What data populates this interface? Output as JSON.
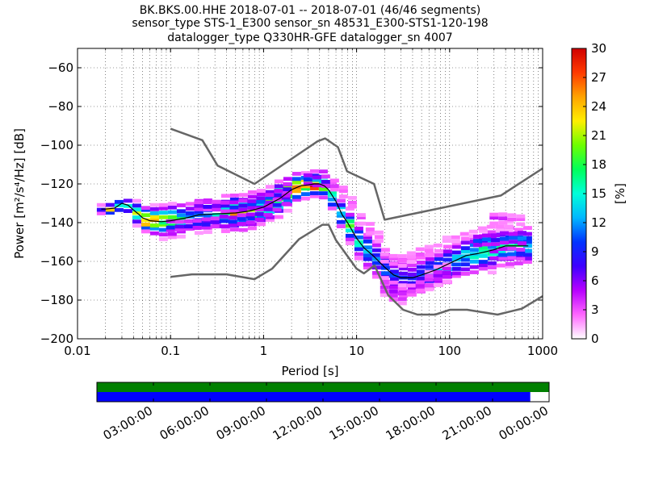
{
  "title": {
    "line1": "BK.BKS.00.HHE   2018-07-01 -- 2018-07-01  (46/46 segments)",
    "line2": "sensor_type STS-1_E300 sensor_sn 48531_E300-STS1-120-198",
    "line3": "datalogger_type Q330HR-GFE datalogger_sn 4007"
  },
  "chart_data": [
    {
      "type": "heatmap",
      "name": "ppsd",
      "xlabel": "Period [s]",
      "ylabel": "Power [m²/s⁴/Hz] [dB]",
      "x_scale": "log",
      "xlim": [
        0.01,
        1000
      ],
      "ylim": [
        -200,
        -50
      ],
      "x_ticks": [
        0.01,
        0.1,
        1,
        10,
        100,
        1000
      ],
      "x_tick_labels": [
        "0.01",
        "0.1",
        "1",
        "10",
        "100",
        "1000"
      ],
      "y_ticks": [
        -200,
        -180,
        -160,
        -140,
        -120,
        -100,
        -80,
        -60
      ],
      "y_tick_labels": [
        "−200",
        "−180",
        "−160",
        "−140",
        "−120",
        "−100",
        "−80",
        "−60"
      ],
      "grid": "dotted",
      "colorbar": {
        "label": "[%]",
        "min": 0,
        "max": 30,
        "ticks": [
          0,
          3,
          6,
          9,
          12,
          15,
          18,
          21,
          24,
          27,
          30
        ],
        "colormap": [
          "#ffffff",
          "#ff66ff",
          "#b700ff",
          "#3d00ff",
          "#0033ff",
          "#00b7ff",
          "#00ffd9",
          "#00ff5b",
          "#6dff00",
          "#ffee00",
          "#ffa300",
          "#ff3a00",
          "#d00000"
        ]
      },
      "noise_models": [
        {
          "name": "NHNM",
          "color": "#666666",
          "points": [
            [
              0.1,
              -91.5
            ],
            [
              0.22,
              -97.4
            ],
            [
              0.32,
              -110.5
            ],
            [
              0.8,
              -120
            ],
            [
              3.8,
              -98
            ],
            [
              4.6,
              -96.5
            ],
            [
              6.3,
              -101
            ],
            [
              7.9,
              -113.5
            ],
            [
              15.4,
              -120
            ],
            [
              20,
              -138.5
            ],
            [
              354.8,
              -126
            ],
            [
              1000,
              -112
            ]
          ]
        },
        {
          "name": "NLNM",
          "color": "#666666",
          "points": [
            [
              0.1,
              -168
            ],
            [
              0.17,
              -166.7
            ],
            [
              0.4,
              -166.7
            ],
            [
              0.8,
              -169.2
            ],
            [
              1.24,
              -163.7
            ],
            [
              2.4,
              -148.6
            ],
            [
              4.3,
              -141.1
            ],
            [
              5,
              -141.1
            ],
            [
              6,
              -149
            ],
            [
              10,
              -163.8
            ],
            [
              12,
              -166.2
            ],
            [
              15.6,
              -162.1
            ],
            [
              21.9,
              -177.5
            ],
            [
              31.6,
              -185
            ],
            [
              45,
              -187.5
            ],
            [
              70,
              -187.5
            ],
            [
              101,
              -185
            ],
            [
              154,
              -185
            ],
            [
              328,
              -187.5
            ],
            [
              600,
              -184.4
            ],
            [
              1000,
              -178
            ]
          ]
        }
      ],
      "median_curve": [
        [
          0.018,
          -133
        ],
        [
          0.02,
          -133
        ],
        [
          0.025,
          -132.5
        ],
        [
          0.03,
          -130
        ],
        [
          0.035,
          -131
        ],
        [
          0.04,
          -133.5
        ],
        [
          0.045,
          -135.5
        ],
        [
          0.05,
          -137.5
        ],
        [
          0.06,
          -139
        ],
        [
          0.08,
          -139.5
        ],
        [
          0.1,
          -139
        ],
        [
          0.15,
          -137.5
        ],
        [
          0.2,
          -136
        ],
        [
          0.3,
          -135.5
        ],
        [
          0.5,
          -135
        ],
        [
          0.7,
          -134
        ],
        [
          1,
          -132
        ],
        [
          1.5,
          -127.5
        ],
        [
          2,
          -123
        ],
        [
          2.5,
          -121
        ],
        [
          3,
          -120.5
        ],
        [
          3.5,
          -120
        ],
        [
          4,
          -120
        ],
        [
          4.5,
          -121
        ],
        [
          5,
          -123
        ],
        [
          6,
          -129
        ],
        [
          7,
          -136
        ],
        [
          8,
          -140
        ],
        [
          10,
          -148
        ],
        [
          12,
          -153
        ],
        [
          15,
          -157
        ],
        [
          20,
          -163
        ],
        [
          25,
          -167
        ],
        [
          30,
          -168.5
        ],
        [
          40,
          -168.5
        ],
        [
          50,
          -167
        ],
        [
          70,
          -164.5
        ],
        [
          100,
          -161
        ],
        [
          150,
          -157
        ],
        [
          200,
          -156
        ],
        [
          300,
          -154
        ],
        [
          400,
          -152
        ],
        [
          500,
          -152
        ],
        [
          700,
          -152
        ]
      ],
      "density_bands": [
        [
          [
            0.018,
            -133.5,
            1.5,
            7
          ],
          [
            0.02,
            -133.5,
            1.5,
            14
          ],
          [
            0.025,
            -133,
            1.8,
            26
          ],
          [
            0.03,
            -130,
            2,
            10
          ],
          [
            0.035,
            -131.5,
            2,
            14
          ],
          [
            0.04,
            -134,
            2.5,
            28
          ],
          [
            0.045,
            -136,
            3,
            20
          ],
          [
            0.05,
            -138,
            3,
            24
          ],
          [
            0.06,
            -139,
            3.5,
            28
          ],
          [
            0.08,
            -139.5,
            4,
            20
          ],
          [
            0.1,
            -139,
            4,
            22
          ],
          [
            0.15,
            -137.5,
            4,
            12
          ],
          [
            0.2,
            -136,
            4.5,
            10
          ],
          [
            0.3,
            -135.5,
            4,
            16
          ],
          [
            0.5,
            -135,
            4.5,
            22
          ],
          [
            0.7,
            -134,
            4.5,
            18
          ],
          [
            1,
            -132,
            4,
            20
          ],
          [
            1.5,
            -127.5,
            4,
            24
          ],
          [
            2,
            -123,
            3.5,
            28
          ],
          [
            2.5,
            -121,
            3,
            30
          ],
          [
            3,
            -120.5,
            3,
            27
          ],
          [
            3.5,
            -120,
            3,
            30
          ],
          [
            4,
            -120,
            3.5,
            24
          ],
          [
            4.5,
            -121,
            3.5,
            20
          ],
          [
            5,
            -123,
            3.5,
            16
          ],
          [
            6,
            -129,
            3.5,
            20
          ],
          [
            7,
            -136,
            4,
            14
          ],
          [
            8,
            -140,
            4,
            18
          ],
          [
            10,
            -148,
            4.5,
            14
          ],
          [
            12,
            -153,
            4.5,
            16
          ],
          [
            15,
            -157,
            5,
            12
          ],
          [
            20,
            -163,
            5,
            10
          ],
          [
            25,
            -167,
            5.5,
            9
          ],
          [
            30,
            -168.5,
            6,
            8
          ],
          [
            40,
            -168.5,
            5.5,
            8
          ],
          [
            50,
            -167,
            5.5,
            10
          ],
          [
            70,
            -164.5,
            5,
            11
          ],
          [
            100,
            -161,
            5,
            12
          ],
          [
            150,
            -157,
            5,
            14
          ],
          [
            200,
            -156,
            5,
            16
          ],
          [
            300,
            -154,
            5,
            15
          ],
          [
            400,
            -152,
            5,
            14
          ],
          [
            500,
            -152,
            5,
            15
          ],
          [
            700,
            -152,
            5,
            14
          ]
        ],
        [
          [
            0.2,
            -131.5,
            2,
            6
          ],
          [
            0.3,
            -131.5,
            2,
            7
          ],
          [
            0.5,
            -132,
            2,
            8
          ],
          [
            0.7,
            -131,
            2,
            9
          ],
          [
            1,
            -129,
            2,
            10
          ],
          [
            1.5,
            -125,
            2,
            9
          ],
          [
            2,
            -121,
            2,
            8
          ]
        ],
        [
          [
            0.1,
            -142,
            2,
            8
          ],
          [
            0.15,
            -141.5,
            2,
            8
          ],
          [
            0.2,
            -141,
            2,
            9
          ],
          [
            0.3,
            -140,
            2,
            8
          ],
          [
            0.5,
            -139,
            2,
            9
          ],
          [
            0.7,
            -138,
            2,
            8
          ],
          [
            1,
            -135,
            2,
            8
          ],
          [
            1.5,
            -130,
            2,
            7
          ],
          [
            2,
            -125.5,
            2,
            7
          ]
        ],
        [
          [
            3,
            -118,
            1.8,
            12
          ],
          [
            4,
            -118.5,
            1.8,
            10
          ],
          [
            5,
            -119,
            2.2,
            5
          ],
          [
            6,
            -121,
            2.5,
            4
          ],
          [
            7,
            -124,
            2.8,
            3
          ],
          [
            8,
            -125,
            2.5,
            3
          ],
          [
            10,
            -134,
            2.5,
            3
          ],
          [
            12,
            -140,
            2.5,
            3
          ],
          [
            15,
            -145,
            2.5,
            3
          ],
          [
            20,
            -150,
            2.5,
            2
          ]
        ],
        [
          [
            20,
            -158,
            3,
            3
          ],
          [
            25,
            -159,
            3,
            3
          ],
          [
            30,
            -160,
            3,
            3
          ],
          [
            40,
            -158,
            3,
            2
          ],
          [
            50,
            -156,
            3,
            3
          ],
          [
            70,
            -153,
            3,
            2
          ],
          [
            100,
            -149,
            2.5,
            2
          ],
          [
            150,
            -146,
            2.5,
            2
          ],
          [
            200,
            -144,
            2.5,
            2
          ],
          [
            300,
            -142,
            2.5,
            2
          ],
          [
            400,
            -142,
            2.5,
            2
          ],
          [
            500,
            -141,
            2,
            2
          ]
        ],
        [
          [
            300,
            -138,
            2,
            4
          ],
          [
            400,
            -138,
            2,
            4
          ],
          [
            500,
            -138.5,
            2,
            3
          ],
          [
            700,
            -138.5,
            2,
            4
          ]
        ],
        [
          [
            20,
            -173,
            3,
            5
          ],
          [
            25,
            -176,
            3.5,
            6
          ],
          [
            30,
            -177,
            3.5,
            4
          ],
          [
            40,
            -175,
            3.5,
            3
          ],
          [
            50,
            -172,
            3,
            4
          ],
          [
            70,
            -168,
            3,
            5
          ],
          [
            100,
            -165,
            3,
            6
          ]
        ],
        [
          [
            200,
            -149.5,
            1.8,
            11
          ],
          [
            300,
            -148.5,
            1.8,
            10
          ],
          [
            400,
            -148,
            1.8,
            11
          ],
          [
            500,
            -148,
            1.8,
            12
          ],
          [
            700,
            -148,
            1.8,
            10
          ]
        ],
        [
          [
            300,
            -156.5,
            1.5,
            13
          ],
          [
            400,
            -156,
            1.5,
            12
          ],
          [
            500,
            -156,
            1.5,
            11
          ],
          [
            700,
            -156,
            1.5,
            10
          ]
        ]
      ]
    },
    {
      "type": "bar",
      "name": "data-coverage",
      "xlim": [
        "2018-07-01T00:00:00",
        "2018-07-02T00:00:00"
      ],
      "x_ticks": [
        "2018-07-01T03:00:00",
        "2018-07-01T06:00:00",
        "2018-07-01T09:00:00",
        "2018-07-01T12:00:00",
        "2018-07-01T15:00:00",
        "2018-07-01T18:00:00",
        "2018-07-01T21:00:00",
        "2018-07-02T00:00:00"
      ],
      "x_tick_labels": [
        "03:00:00",
        "06:00:00",
        "09:00:00",
        "12:00:00",
        "15:00:00",
        "18:00:00",
        "21:00:00",
        "00:00:00"
      ],
      "series": [
        {
          "color": "#008000",
          "intervals": [
            [
              "2018-07-01T00:00:00",
              "2018-07-02T00:00:00"
            ]
          ]
        },
        {
          "color": "#0000ff",
          "intervals": [
            [
              "2018-07-01T00:00:00",
              "2018-07-01T23:00:00"
            ]
          ]
        }
      ]
    }
  ]
}
